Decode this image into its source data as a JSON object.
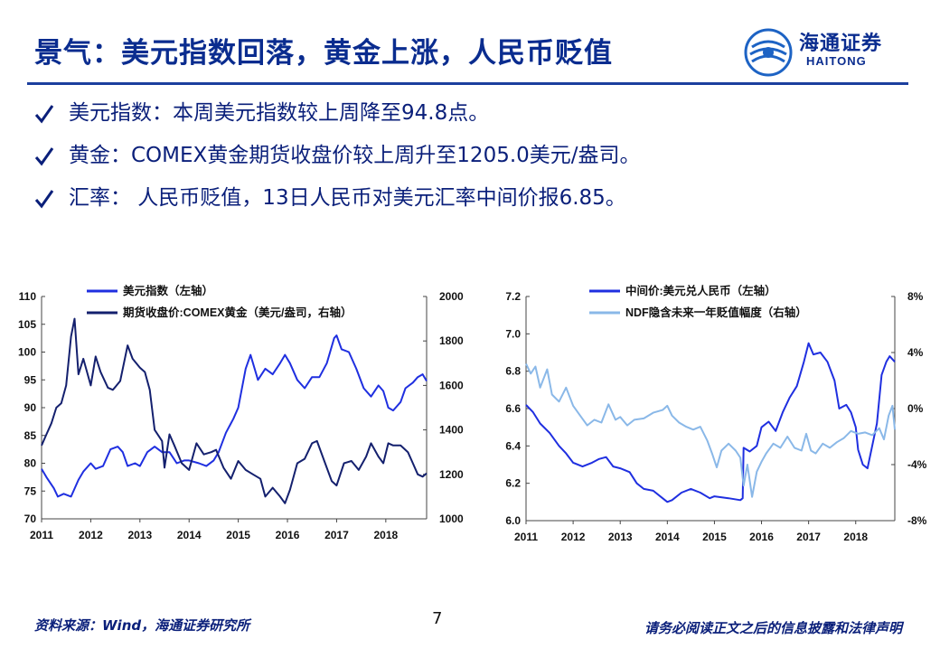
{
  "slide": {
    "title": "景气：美元指数回落，黄金上涨，人民币贬值",
    "logo_cn": "海通证券",
    "logo_en": "HAITONG",
    "bullets": [
      "美元指数：本周美元指数较上周降至94.8点。",
      "黄金：COMEX黄金期货收盘价较上周升至1205.0美元/盎司。",
      "汇率： 人民币贬值，13日人民币对美元汇率中间价报6.85。"
    ],
    "source": "资料来源：Wind，海通证券研究所",
    "page_number": "7",
    "disclaimer": "请务必阅读正文之后的信息披露和法律声明"
  },
  "colors": {
    "title": "#0a2c8f",
    "rule": "#1c3f9e",
    "dark_blue": "#14206e",
    "mid_blue": "#1f2fe0",
    "light_blue": "#8ab8e8"
  },
  "chart_data": [
    {
      "type": "line",
      "x_ticks": [
        "2011",
        "2012",
        "2013",
        "2014",
        "2015",
        "2016",
        "2017",
        "2018"
      ],
      "xlim": [
        2011,
        2018.83
      ],
      "y_left": {
        "ticks": [
          "70",
          "75",
          "80",
          "85",
          "90",
          "95",
          "100",
          "105",
          "110"
        ],
        "lim": [
          70,
          110
        ]
      },
      "y_right": {
        "ticks": [
          "1000",
          "1200",
          "1400",
          "1600",
          "1800",
          "2000"
        ],
        "lim": [
          1000,
          2000
        ]
      },
      "legend_position": "top",
      "series": [
        {
          "name": "美元指数（左轴）",
          "axis": "left",
          "color": "#1f2fe0",
          "points": [
            [
              2011.0,
              79
            ],
            [
              2011.1,
              77.5
            ],
            [
              2011.25,
              75.5
            ],
            [
              2011.33,
              74
            ],
            [
              2011.45,
              74.5
            ],
            [
              2011.6,
              74
            ],
            [
              2011.75,
              77
            ],
            [
              2011.85,
              78.5
            ],
            [
              2012.0,
              80
            ],
            [
              2012.1,
              79
            ],
            [
              2012.25,
              79.5
            ],
            [
              2012.4,
              82.5
            ],
            [
              2012.55,
              83
            ],
            [
              2012.65,
              82
            ],
            [
              2012.75,
              79.5
            ],
            [
              2012.9,
              80
            ],
            [
              2013.0,
              79.5
            ],
            [
              2013.15,
              82
            ],
            [
              2013.3,
              83
            ],
            [
              2013.45,
              82
            ],
            [
              2013.6,
              82
            ],
            [
              2013.75,
              80
            ],
            [
              2013.9,
              80.5
            ],
            [
              2014.0,
              80.5
            ],
            [
              2014.2,
              80
            ],
            [
              2014.35,
              79.5
            ],
            [
              2014.5,
              80.5
            ],
            [
              2014.6,
              82
            ],
            [
              2014.75,
              85.5
            ],
            [
              2014.9,
              88
            ],
            [
              2015.0,
              90
            ],
            [
              2015.15,
              97
            ],
            [
              2015.25,
              99.5
            ],
            [
              2015.4,
              95
            ],
            [
              2015.55,
              97
            ],
            [
              2015.7,
              96
            ],
            [
              2015.85,
              98
            ],
            [
              2015.95,
              99.5
            ],
            [
              2016.05,
              98
            ],
            [
              2016.2,
              95
            ],
            [
              2016.35,
              93.5
            ],
            [
              2016.5,
              95.5
            ],
            [
              2016.65,
              95.5
            ],
            [
              2016.8,
              98
            ],
            [
              2016.95,
              102.5
            ],
            [
              2017.0,
              103
            ],
            [
              2017.1,
              100.5
            ],
            [
              2017.25,
              100
            ],
            [
              2017.4,
              97
            ],
            [
              2017.55,
              93.5
            ],
            [
              2017.7,
              92
            ],
            [
              2017.85,
              94
            ],
            [
              2017.95,
              93
            ],
            [
              2018.05,
              90
            ],
            [
              2018.15,
              89.5
            ],
            [
              2018.3,
              91
            ],
            [
              2018.4,
              93.5
            ],
            [
              2018.55,
              94.5
            ],
            [
              2018.65,
              95.5
            ],
            [
              2018.75,
              96
            ],
            [
              2018.83,
              94.8
            ]
          ]
        },
        {
          "name": "期货收盘价:COMEX黄金（美元/盎司，右轴）",
          "axis": "right",
          "color": "#14206e",
          "points": [
            [
              2011.0,
              1330
            ],
            [
              2011.1,
              1380
            ],
            [
              2011.2,
              1430
            ],
            [
              2011.3,
              1500
            ],
            [
              2011.4,
              1520
            ],
            [
              2011.5,
              1600
            ],
            [
              2011.6,
              1820
            ],
            [
              2011.67,
              1900
            ],
            [
              2011.75,
              1650
            ],
            [
              2011.85,
              1720
            ],
            [
              2012.0,
              1600
            ],
            [
              2012.1,
              1730
            ],
            [
              2012.2,
              1660
            ],
            [
              2012.35,
              1590
            ],
            [
              2012.45,
              1580
            ],
            [
              2012.6,
              1620
            ],
            [
              2012.75,
              1780
            ],
            [
              2012.85,
              1720
            ],
            [
              2013.0,
              1680
            ],
            [
              2013.1,
              1660
            ],
            [
              2013.2,
              1580
            ],
            [
              2013.3,
              1400
            ],
            [
              2013.45,
              1350
            ],
            [
              2013.5,
              1230
            ],
            [
              2013.6,
              1380
            ],
            [
              2013.7,
              1330
            ],
            [
              2013.85,
              1250
            ],
            [
              2014.0,
              1220
            ],
            [
              2014.15,
              1340
            ],
            [
              2014.3,
              1290
            ],
            [
              2014.45,
              1300
            ],
            [
              2014.55,
              1310
            ],
            [
              2014.7,
              1230
            ],
            [
              2014.85,
              1180
            ],
            [
              2015.0,
              1260
            ],
            [
              2015.15,
              1220
            ],
            [
              2015.3,
              1200
            ],
            [
              2015.45,
              1180
            ],
            [
              2015.55,
              1100
            ],
            [
              2015.7,
              1140
            ],
            [
              2015.85,
              1100
            ],
            [
              2015.95,
              1070
            ],
            [
              2016.05,
              1130
            ],
            [
              2016.2,
              1250
            ],
            [
              2016.35,
              1270
            ],
            [
              2016.5,
              1340
            ],
            [
              2016.6,
              1350
            ],
            [
              2016.75,
              1260
            ],
            [
              2016.9,
              1170
            ],
            [
              2017.0,
              1150
            ],
            [
              2017.15,
              1250
            ],
            [
              2017.3,
              1260
            ],
            [
              2017.45,
              1220
            ],
            [
              2017.6,
              1280
            ],
            [
              2017.7,
              1340
            ],
            [
              2017.85,
              1280
            ],
            [
              2017.95,
              1250
            ],
            [
              2018.05,
              1340
            ],
            [
              2018.15,
              1330
            ],
            [
              2018.3,
              1330
            ],
            [
              2018.45,
              1300
            ],
            [
              2018.55,
              1250
            ],
            [
              2018.65,
              1200
            ],
            [
              2018.75,
              1190
            ],
            [
              2018.83,
              1205
            ]
          ]
        }
      ]
    },
    {
      "type": "line",
      "x_ticks": [
        "2011",
        "2012",
        "2013",
        "2014",
        "2015",
        "2016",
        "2017",
        "2018"
      ],
      "xlim": [
        2011,
        2018.83
      ],
      "y_left": {
        "ticks": [
          "6.0",
          "6.2",
          "6.4",
          "6.6",
          "6.8",
          "7.0",
          "7.2"
        ],
        "lim": [
          6.0,
          7.2
        ]
      },
      "y_right": {
        "ticks": [
          "-8%",
          "-4%",
          "0%",
          "4%",
          "8%"
        ],
        "lim": [
          -8,
          8
        ]
      },
      "legend_position": "top",
      "series": [
        {
          "name": "中间价:美元兑人民币（左轴）",
          "axis": "left",
          "color": "#1f2fe0",
          "points": [
            [
              2011.0,
              6.62
            ],
            [
              2011.15,
              6.58
            ],
            [
              2011.3,
              6.52
            ],
            [
              2011.5,
              6.47
            ],
            [
              2011.7,
              6.4
            ],
            [
              2011.85,
              6.36
            ],
            [
              2012.0,
              6.31
            ],
            [
              2012.2,
              6.29
            ],
            [
              2012.4,
              6.31
            ],
            [
              2012.55,
              6.33
            ],
            [
              2012.7,
              6.34
            ],
            [
              2012.85,
              6.29
            ],
            [
              2013.0,
              6.28
            ],
            [
              2013.2,
              6.26
            ],
            [
              2013.35,
              6.2
            ],
            [
              2013.5,
              6.17
            ],
            [
              2013.7,
              6.16
            ],
            [
              2013.9,
              6.12
            ],
            [
              2014.0,
              6.1
            ],
            [
              2014.1,
              6.11
            ],
            [
              2014.3,
              6.15
            ],
            [
              2014.5,
              6.17
            ],
            [
              2014.7,
              6.15
            ],
            [
              2014.9,
              6.12
            ],
            [
              2015.0,
              6.13
            ],
            [
              2015.3,
              6.12
            ],
            [
              2015.55,
              6.11
            ],
            [
              2015.6,
              6.12
            ],
            [
              2015.62,
              6.39
            ],
            [
              2015.75,
              6.37
            ],
            [
              2015.9,
              6.4
            ],
            [
              2016.0,
              6.5
            ],
            [
              2016.15,
              6.53
            ],
            [
              2016.3,
              6.48
            ],
            [
              2016.45,
              6.58
            ],
            [
              2016.6,
              6.66
            ],
            [
              2016.75,
              6.72
            ],
            [
              2016.9,
              6.85
            ],
            [
              2017.0,
              6.95
            ],
            [
              2017.1,
              6.89
            ],
            [
              2017.25,
              6.9
            ],
            [
              2017.4,
              6.85
            ],
            [
              2017.55,
              6.75
            ],
            [
              2017.65,
              6.6
            ],
            [
              2017.8,
              6.62
            ],
            [
              2017.9,
              6.58
            ],
            [
              2018.0,
              6.5
            ],
            [
              2018.05,
              6.38
            ],
            [
              2018.15,
              6.3
            ],
            [
              2018.25,
              6.28
            ],
            [
              2018.35,
              6.4
            ],
            [
              2018.45,
              6.52
            ],
            [
              2018.55,
              6.78
            ],
            [
              2018.65,
              6.85
            ],
            [
              2018.72,
              6.88
            ],
            [
              2018.83,
              6.85
            ]
          ]
        },
        {
          "name": "NDF隐含未来一年贬值幅度（右轴）",
          "axis": "right",
          "color": "#8ab8e8",
          "points": [
            [
              2011.0,
              3.2
            ],
            [
              2011.1,
              2.5
            ],
            [
              2011.2,
              3.0
            ],
            [
              2011.3,
              1.5
            ],
            [
              2011.45,
              2.8
            ],
            [
              2011.55,
              1.0
            ],
            [
              2011.7,
              0.5
            ],
            [
              2011.85,
              1.5
            ],
            [
              2012.0,
              0.2
            ],
            [
              2012.15,
              -0.5
            ],
            [
              2012.3,
              -1.2
            ],
            [
              2012.45,
              -0.8
            ],
            [
              2012.6,
              -1.0
            ],
            [
              2012.75,
              0.3
            ],
            [
              2012.9,
              -0.8
            ],
            [
              2013.0,
              -0.6
            ],
            [
              2013.15,
              -1.2
            ],
            [
              2013.3,
              -0.8
            ],
            [
              2013.5,
              -0.7
            ],
            [
              2013.7,
              -0.3
            ],
            [
              2013.9,
              -0.1
            ],
            [
              2014.0,
              0.2
            ],
            [
              2014.1,
              -0.5
            ],
            [
              2014.25,
              -1.0
            ],
            [
              2014.4,
              -1.3
            ],
            [
              2014.55,
              -1.5
            ],
            [
              2014.7,
              -1.3
            ],
            [
              2014.85,
              -2.3
            ],
            [
              2014.95,
              -3.2
            ],
            [
              2015.05,
              -4.2
            ],
            [
              2015.15,
              -3.0
            ],
            [
              2015.3,
              -2.5
            ],
            [
              2015.45,
              -3.0
            ],
            [
              2015.55,
              -3.5
            ],
            [
              2015.62,
              -5.5
            ],
            [
              2015.7,
              -4.0
            ],
            [
              2015.8,
              -6.3
            ],
            [
              2015.9,
              -4.5
            ],
            [
              2016.0,
              -3.8
            ],
            [
              2016.1,
              -3.2
            ],
            [
              2016.25,
              -2.5
            ],
            [
              2016.4,
              -2.8
            ],
            [
              2016.55,
              -2.0
            ],
            [
              2016.7,
              -2.8
            ],
            [
              2016.85,
              -3.0
            ],
            [
              2016.95,
              -1.8
            ],
            [
              2017.05,
              -3.0
            ],
            [
              2017.15,
              -3.2
            ],
            [
              2017.3,
              -2.5
            ],
            [
              2017.45,
              -2.8
            ],
            [
              2017.6,
              -2.4
            ],
            [
              2017.75,
              -2.1
            ],
            [
              2017.9,
              -1.6
            ],
            [
              2018.05,
              -1.8
            ],
            [
              2018.2,
              -1.7
            ],
            [
              2018.35,
              -1.9
            ],
            [
              2018.5,
              -1.4
            ],
            [
              2018.6,
              -2.2
            ],
            [
              2018.7,
              -0.5
            ],
            [
              2018.78,
              0.2
            ],
            [
              2018.83,
              -1.5
            ]
          ]
        }
      ]
    }
  ]
}
